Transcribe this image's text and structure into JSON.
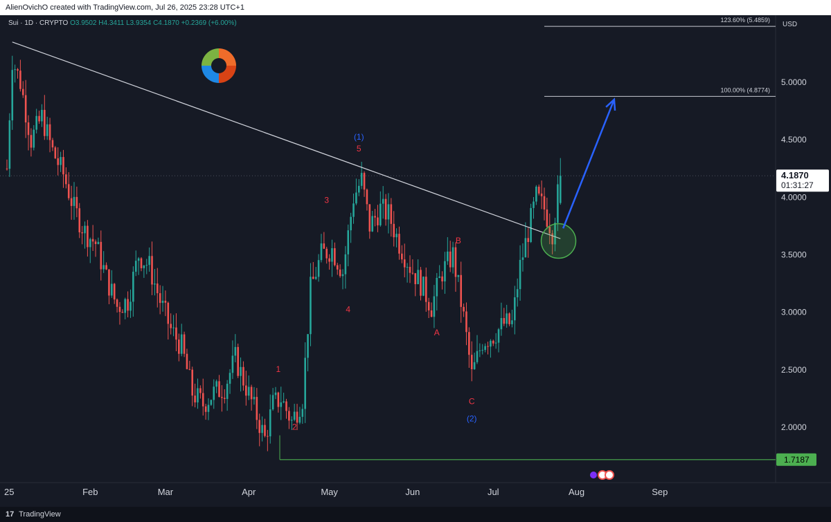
{
  "header": {
    "attribution": "AlienOvichO created with TradingView.com, Jul 26, 2025 23:28 UTC+1"
  },
  "legend": {
    "symbol": "Sui · 1D · CRYPTO",
    "open": "O3.9502",
    "high": "H4.3411",
    "low": "L3.9354",
    "close": "C4.1870",
    "change": "+0.2369 (+6.00%)"
  },
  "footer": {
    "brand": "TradingView"
  },
  "colors": {
    "up": "#26a69a",
    "down": "#ef5350",
    "wave_red": "#f23645",
    "wave_blue": "#2962ff",
    "trendline": "#d1d4dc",
    "support": "#4caf50"
  },
  "chart_data": {
    "type": "candlestick",
    "currency": "USD",
    "y_ticks": [
      2.0,
      2.5,
      3.0,
      3.5,
      4.0,
      4.5,
      5.0
    ],
    "y_tick_labels": [
      "2.0000",
      "2.5000",
      "3.0000",
      "3.5000",
      "4.0000",
      "4.5000",
      "5.0000"
    ],
    "x_labels": [
      "25",
      "Feb",
      "Mar",
      "Apr",
      "May",
      "Jun",
      "Jul",
      "Aug",
      "Sep"
    ],
    "last_price": "4.1870",
    "countdown": "01:31:27",
    "support_level": "1.7187",
    "fib_levels": [
      {
        "label": "100.00% (4.8774)",
        "value": 4.8774
      },
      {
        "label": "123.60% (5.4859)",
        "value": 5.4859
      }
    ],
    "wave_labels": [
      {
        "text": "1",
        "color": "red",
        "date": "2025-04-12",
        "price": 2.48
      },
      {
        "text": "2",
        "color": "red",
        "date": "2025-04-18",
        "price": 1.98
      },
      {
        "text": "3",
        "color": "red",
        "date": "2025-04-30",
        "price": 3.95
      },
      {
        "text": "4",
        "color": "red",
        "date": "2025-05-08",
        "price": 3.0
      },
      {
        "text": "5",
        "color": "red",
        "date": "2025-05-12",
        "price": 4.4
      },
      {
        "text": "(1)",
        "color": "blue",
        "date": "2025-05-12",
        "price": 4.5
      },
      {
        "text": "A",
        "color": "red",
        "date": "2025-06-10",
        "price": 2.8
      },
      {
        "text": "B",
        "color": "red",
        "date": "2025-06-18",
        "price": 3.6
      },
      {
        "text": "C",
        "color": "red",
        "date": "2025-06-23",
        "price": 2.2
      },
      {
        "text": "(2)",
        "color": "blue",
        "date": "2025-06-23",
        "price": 2.05
      }
    ],
    "price_path": [
      [
        "2025-01-01",
        4.25
      ],
      [
        "2025-01-03",
        5.2
      ],
      [
        "2025-01-06",
        5.0
      ],
      [
        "2025-01-10",
        4.5
      ],
      [
        "2025-01-14",
        4.7
      ],
      [
        "2025-01-18",
        4.4
      ],
      [
        "2025-01-22",
        4.2
      ],
      [
        "2025-01-26",
        3.9
      ],
      [
        "2025-01-30",
        3.7
      ],
      [
        "2025-02-03",
        3.6
      ],
      [
        "2025-02-07",
        3.3
      ],
      [
        "2025-02-11",
        3.05
      ],
      [
        "2025-02-15",
        3.1
      ],
      [
        "2025-02-19",
        3.5
      ],
      [
        "2025-02-23",
        3.4
      ],
      [
        "2025-02-27",
        3.1
      ],
      [
        "2025-03-03",
        2.85
      ],
      [
        "2025-03-07",
        2.7
      ],
      [
        "2025-03-11",
        2.3
      ],
      [
        "2025-03-15",
        2.2
      ],
      [
        "2025-03-19",
        2.3
      ],
      [
        "2025-03-23",
        2.35
      ],
      [
        "2025-03-27",
        2.6
      ],
      [
        "2025-03-31",
        2.35
      ],
      [
        "2025-04-04",
        2.1
      ],
      [
        "2025-04-07",
        1.9
      ],
      [
        "2025-04-10",
        2.2
      ],
      [
        "2025-04-13",
        2.25
      ],
      [
        "2025-04-17",
        2.05
      ],
      [
        "2025-04-21",
        2.25
      ],
      [
        "2025-04-24",
        3.2
      ],
      [
        "2025-04-28",
        3.5
      ],
      [
        "2025-05-02",
        3.55
      ],
      [
        "2025-05-06",
        3.35
      ],
      [
        "2025-05-10",
        4.0
      ],
      [
        "2025-05-13",
        4.15
      ],
      [
        "2025-05-16",
        3.75
      ],
      [
        "2025-05-20",
        3.9
      ],
      [
        "2025-05-23",
        3.85
      ],
      [
        "2025-05-27",
        3.6
      ],
      [
        "2025-05-31",
        3.4
      ],
      [
        "2025-06-04",
        3.25
      ],
      [
        "2025-06-08",
        3.05
      ],
      [
        "2025-06-12",
        3.35
      ],
      [
        "2025-06-16",
        3.5
      ],
      [
        "2025-06-20",
        2.95
      ],
      [
        "2025-06-23",
        2.45
      ],
      [
        "2025-06-27",
        2.75
      ],
      [
        "2025-07-01",
        2.8
      ],
      [
        "2025-07-05",
        2.9
      ],
      [
        "2025-07-08",
        2.9
      ],
      [
        "2025-07-11",
        3.4
      ],
      [
        "2025-07-14",
        3.7
      ],
      [
        "2025-07-17",
        4.0
      ],
      [
        "2025-07-20",
        3.9
      ],
      [
        "2025-07-23",
        3.7
      ],
      [
        "2025-07-26",
        4.187
      ]
    ],
    "trendline": {
      "from": [
        "2025-01-03",
        5.35
      ],
      "to": [
        "2025-07-26",
        3.64
      ]
    },
    "projection_arrow": {
      "from": [
        "2025-07-27",
        3.73
      ],
      "to": [
        "2025-08-15",
        4.85
      ]
    },
    "highlight_circle": {
      "date": "2025-07-24",
      "price": 3.62
    }
  }
}
